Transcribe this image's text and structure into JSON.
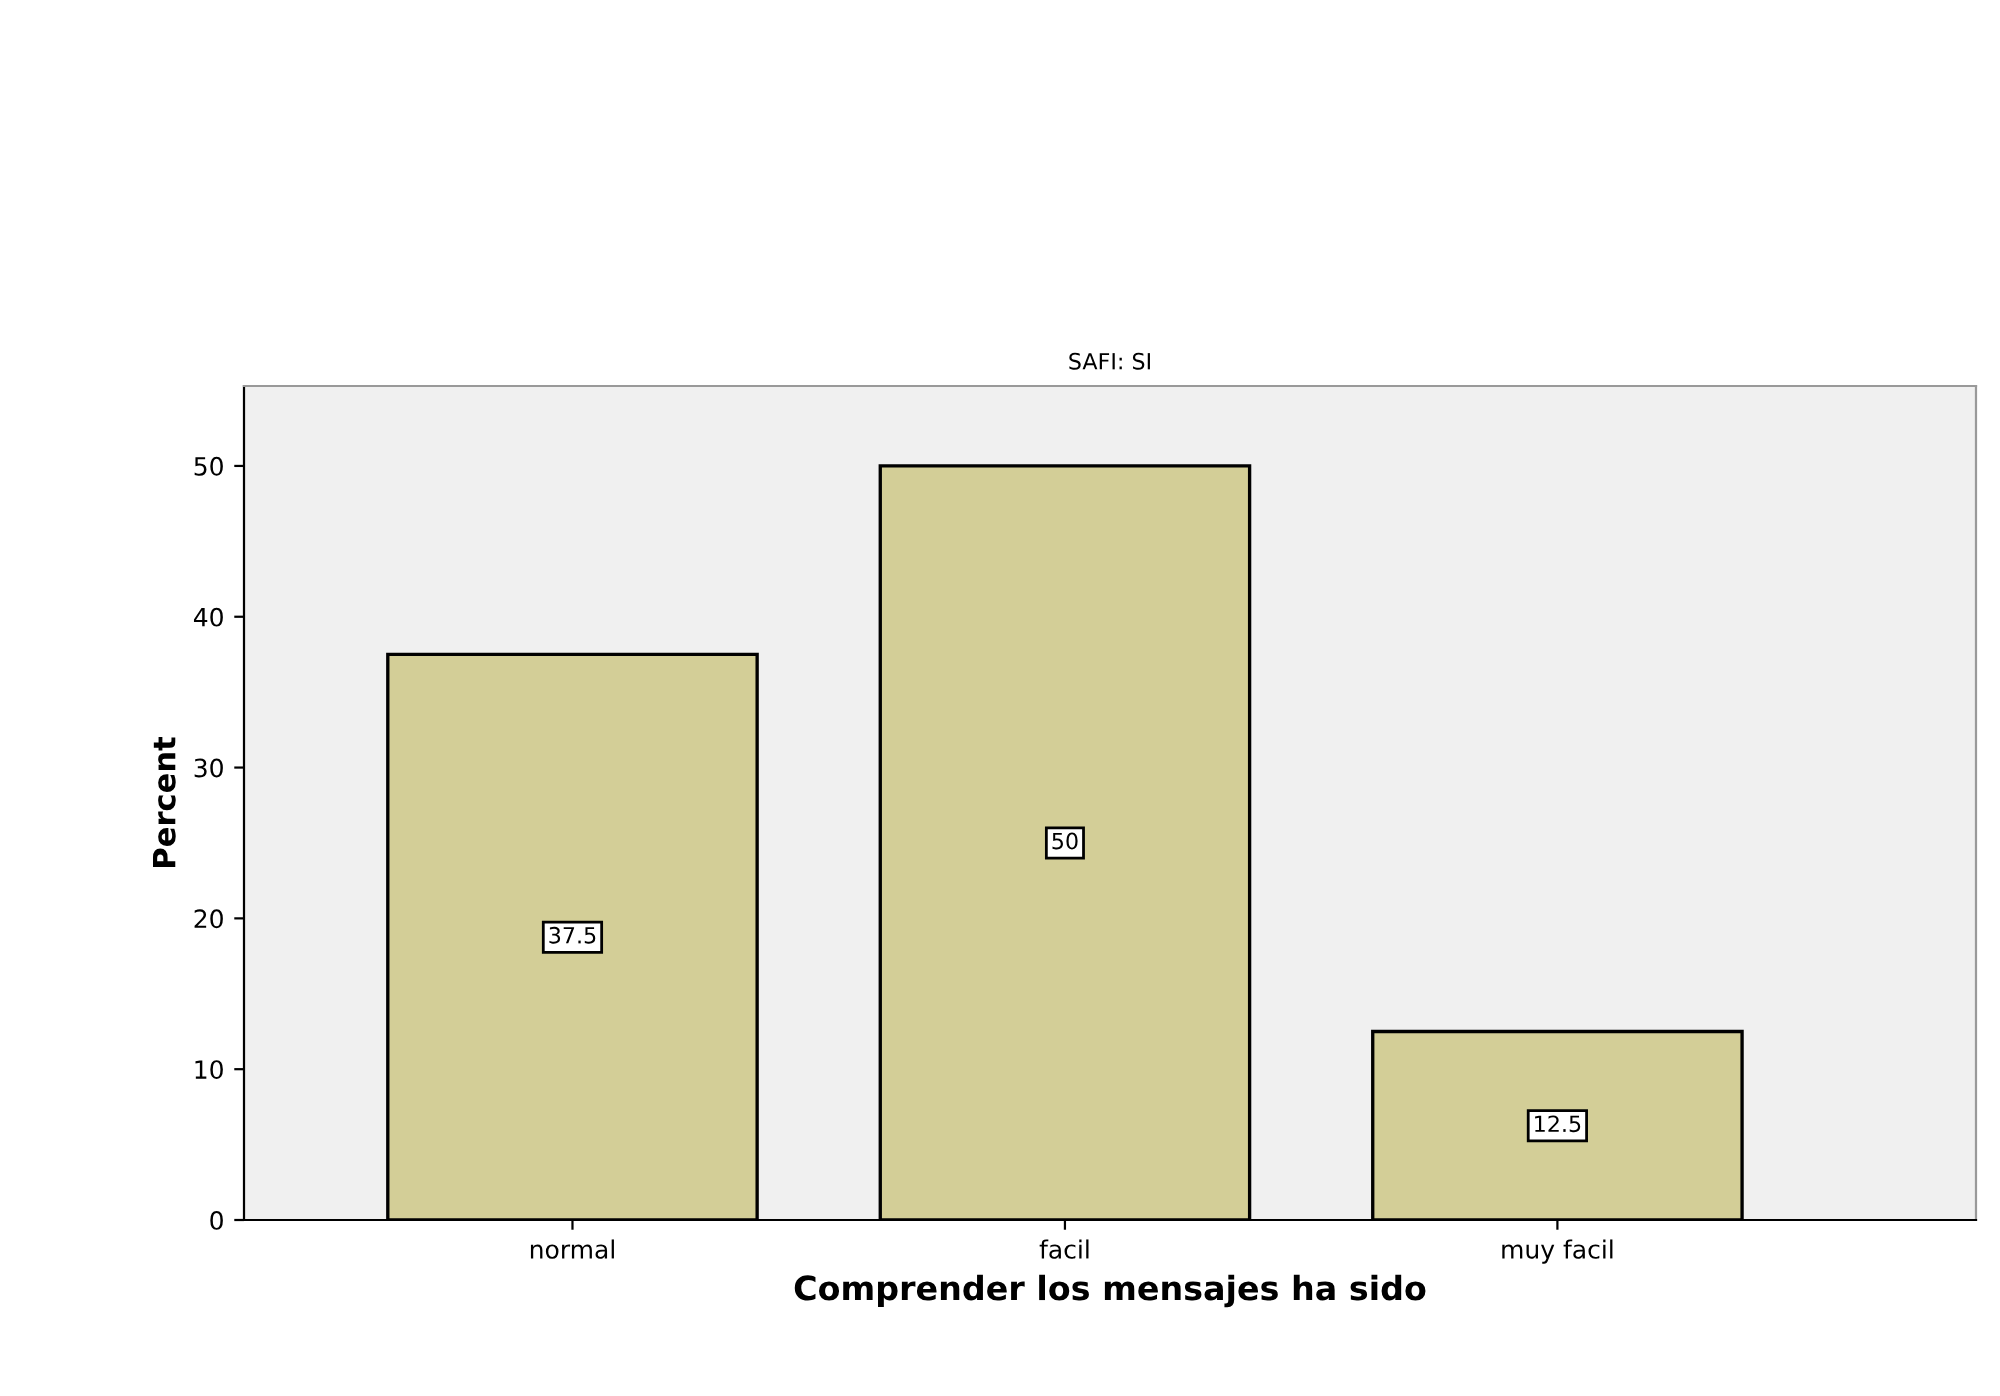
{
  "chart_data": {
    "type": "bar",
    "title": "SAFI: SI",
    "xlabel": "Comprender los mensajes ha sido",
    "ylabel": "Percent",
    "categories": [
      "normal",
      "facil",
      "muy facil"
    ],
    "values": [
      37.5,
      50,
      12.5
    ],
    "value_labels": [
      "37.5",
      "50",
      "12.5"
    ],
    "color": "#d3ce97",
    "ylim": [
      0,
      55.3
    ],
    "yticks": [
      0,
      10,
      20,
      30,
      40,
      50
    ],
    "grid": false
  }
}
